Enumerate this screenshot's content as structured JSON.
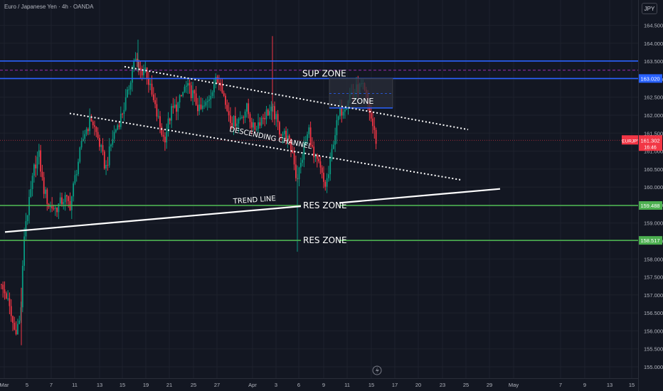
{
  "header": {
    "title": "Euro / Japanese Yen · 4h · OANDA",
    "currency": "JPY"
  },
  "colors": {
    "background": "#131722",
    "grid": "#1e222d",
    "up_candle": "#089981",
    "down_candle": "#f23645",
    "blue_line": "#2962ff",
    "green_line": "#4caf50",
    "purple_dashed": "#9c27b0",
    "white": "#ffffff"
  },
  "price_badge": {
    "symbol": "EURJPY",
    "price": "161.302",
    "countdown": "16:46"
  },
  "level_badges": [
    {
      "label": "163.020",
      "value": 163.02,
      "color": "#2962ff"
    },
    {
      "label": "159.488",
      "value": 159.488,
      "color": "#4caf50"
    },
    {
      "label": "158.517",
      "value": 158.517,
      "color": "#4caf50"
    }
  ],
  "chart_data": {
    "type": "candlestick",
    "title": "Euro / Japanese Yen · 4h · OANDA",
    "ylim": [
      154.9,
      164.9
    ],
    "y_ticks": [
      "155.000",
      "155.500",
      "156.000",
      "156.500",
      "157.000",
      "157.500",
      "158.000",
      "158.500",
      "159.000",
      "159.500",
      "160.000",
      "160.500",
      "161.000",
      "161.500",
      "162.000",
      "162.500",
      "163.000",
      "163.500",
      "164.000",
      "164.500"
    ],
    "x_ticks": [
      "Mar",
      "5",
      "7",
      "11",
      "13",
      "15",
      "19",
      "21",
      "25",
      "27",
      "Apr",
      "3",
      "6",
      "9",
      "11",
      "15",
      "17",
      "20",
      "23",
      "25",
      "29",
      "May",
      "7",
      "9",
      "13",
      "15"
    ],
    "grid": true,
    "last_price": 161.302,
    "horizontal_levels": [
      {
        "value": 163.507,
        "style": "solid",
        "color": "#2962ff"
      },
      {
        "value": 163.02,
        "style": "solid",
        "color": "#2962ff"
      },
      {
        "value": 163.25,
        "style": "dashed",
        "color": "#9c27b0"
      },
      {
        "value": 159.488,
        "style": "solid",
        "color": "#4caf50"
      },
      {
        "value": 158.517,
        "style": "solid",
        "color": "#4caf50"
      },
      {
        "value": 161.302,
        "style": "dotted",
        "color": "#f23645"
      }
    ],
    "annotations": [
      "SUP ZONE",
      "ZONE",
      "DESCENDING CHANNEL",
      "TREND LINE",
      "RES ZONE",
      "RES ZONE"
    ]
  }
}
